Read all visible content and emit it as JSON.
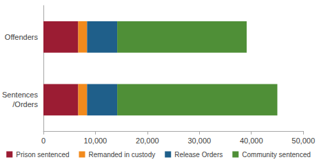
{
  "chart_data": {
    "type": "bar",
    "orientation": "horizontal",
    "stacked": true,
    "categories": [
      "Offenders",
      "Sentences\n/Orders"
    ],
    "series": [
      {
        "name": "Prison sentenced",
        "color": "#9b1c33",
        "values": [
          6700,
          6700
        ]
      },
      {
        "name": "Remanded in custody",
        "color": "#f28a1c",
        "values": [
          1700,
          1700
        ]
      },
      {
        "name": "Release Orders",
        "color": "#1f5f8a",
        "values": [
          5800,
          5800
        ]
      },
      {
        "name": "Community sentenced",
        "color": "#4f8f37",
        "values": [
          24900,
          30800
        ]
      }
    ],
    "xlim": [
      0,
      50000
    ],
    "xticks": [
      0,
      {
        "value": 10000,
        "label": "10,000"
      },
      {
        "value": 20000,
        "label": "20,000"
      },
      {
        "value": 30000,
        "label": "30,000"
      },
      {
        "value": 40000,
        "label": "40,000"
      },
      {
        "value": 50000,
        "label": "50,000"
      }
    ],
    "grid": false,
    "legend": "bottom"
  }
}
